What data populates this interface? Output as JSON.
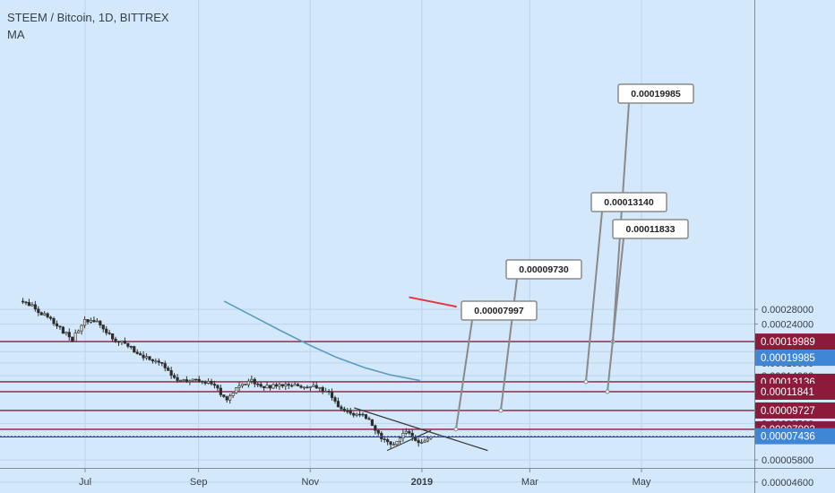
{
  "header": {
    "title": "STEEM / Bitcoin, 1D, BITTREX",
    "indicator": "MA"
  },
  "colors": {
    "background": "#d3e8fb",
    "grid": "#bcd3ea",
    "candle_up": "#dcdcd2",
    "candle_down": "#2b2b2b",
    "wick": "#333333",
    "ma_line": "#5c9cc2",
    "resistance_line": "#8c1a3a",
    "resistance_tag": "#8c1a3a",
    "current_price_tag": "#3f86d6",
    "trend_arrow": "#e8343c",
    "callout_border": "#8a8a8a"
  },
  "chart_data": {
    "type": "candlestick",
    "title": "STEEM / Bitcoin, 1D, BITTREX",
    "indicator": "MA",
    "x_ticks": [
      "Jul",
      "Sep",
      "Nov",
      "2019",
      "Mar",
      "May"
    ],
    "y_ticks": [
      "0.00028000",
      "0.00024000",
      "0.00018000",
      "0.00016000",
      "0.00014000",
      "0.00008500",
      "0.00005800",
      "0.00004600"
    ],
    "current_price": "0.00007436",
    "horizontal_levels": [
      {
        "price": "0.00019989",
        "tag": "0.00019989",
        "callout": "0.00019985"
      },
      {
        "price": "0.00013136",
        "tag": "0.00013136",
        "callout": "0.00013140"
      },
      {
        "price": "0.00011841",
        "tag": "0.00011841",
        "callout": "0.00011833"
      },
      {
        "price": "0.00009727",
        "tag": "0.00009727",
        "callout": "0.00009730"
      },
      {
        "price": "0.00007992",
        "tag": "0.00007992",
        "callout": "0.00007997"
      }
    ],
    "extra_price_tag": "0.00019985",
    "price_path": [
      [
        "2018-05-28",
        0.000305
      ],
      [
        "2018-06-03",
        0.000285
      ],
      [
        "2018-06-10",
        0.00026
      ],
      [
        "2018-06-17",
        0.00023
      ],
      [
        "2018-06-24",
        0.000205
      ],
      [
        "2018-07-01",
        0.00025
      ],
      [
        "2018-07-08",
        0.000245
      ],
      [
        "2018-07-15",
        0.00021
      ],
      [
        "2018-07-22",
        0.000195
      ],
      [
        "2018-07-29",
        0.00018
      ],
      [
        "2018-08-05",
        0.000165
      ],
      [
        "2018-08-12",
        0.00016
      ],
      [
        "2018-08-19",
        0.000135
      ],
      [
        "2018-08-26",
        0.000133
      ],
      [
        "2018-09-02",
        0.000134
      ],
      [
        "2018-09-09",
        0.000128
      ],
      [
        "2018-09-16",
        0.000108
      ],
      [
        "2018-09-23",
        0.000126
      ],
      [
        "2018-09-30",
        0.000132
      ],
      [
        "2018-10-07",
        0.000124
      ],
      [
        "2018-10-14",
        0.000127
      ],
      [
        "2018-10-21",
        0.000125
      ],
      [
        "2018-10-28",
        0.000126
      ],
      [
        "2018-11-04",
        0.000125
      ],
      [
        "2018-11-11",
        0.000117
      ],
      [
        "2018-11-18",
        9.8e-05
      ],
      [
        "2018-11-25",
        9.4e-05
      ],
      [
        "2018-12-02",
        9e-05
      ],
      [
        "2018-12-09",
        7.4e-05
      ],
      [
        "2018-12-16",
        6.6e-05
      ],
      [
        "2018-12-23",
        7.8e-05
      ],
      [
        "2018-12-30",
        7e-05
      ],
      [
        "2019-01-06",
        7.4e-05
      ]
    ],
    "ma_path": [
      [
        "2018-09-15",
        0.000305
      ],
      [
        "2018-10-01",
        0.00026
      ],
      [
        "2018-10-15",
        0.000226
      ],
      [
        "2018-11-01",
        0.000192
      ],
      [
        "2018-11-15",
        0.00017
      ],
      [
        "2018-12-01",
        0.000152
      ],
      [
        "2018-12-15",
        0.000141
      ],
      [
        "2018-12-31",
        0.000133
      ]
    ],
    "trendlines": [
      {
        "from": [
          "2018-11-25",
          0.0001
        ],
        "to": [
          "2019-02-06",
          6.4e-05
        ]
      },
      {
        "from": [
          "2018-12-13",
          6.4e-05
        ],
        "to": [
          "2019-01-06",
          7.9e-05
        ]
      }
    ],
    "arrow": {
      "from": [
        "2018-12-25",
        0.000318
      ],
      "to": [
        "2019-01-20",
        0.000288
      ]
    }
  }
}
